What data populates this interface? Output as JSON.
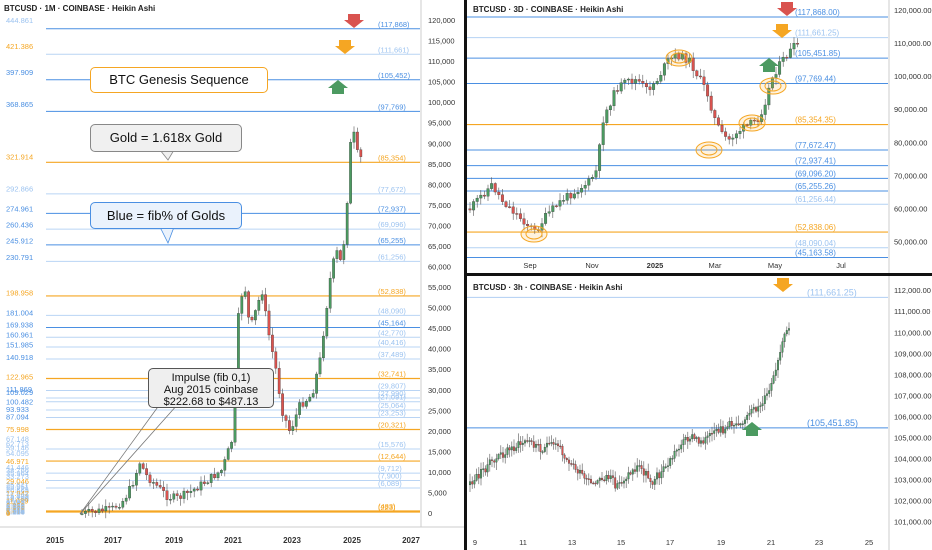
{
  "colors": {
    "orange": "#f5a623",
    "blue": "#4a8fe2",
    "lightblue": "#9cc3f0",
    "green": "#4c9a61",
    "red": "#d9534f",
    "impulse": "#efefef"
  },
  "callouts": {
    "genesis": "BTC Genesis Sequence",
    "gold": "Gold = 1.618x Gold",
    "blue": "Blue = fib% of Golds",
    "impulse_1": "Impulse (fib 0,1)",
    "impulse_2": "Aug 2015 coinbase",
    "impulse_3": "$222.68 to $487.13"
  },
  "chart_data": [
    {
      "type": "candlestick",
      "title": "BTCUSD · 1M · COINBASE · Heikin Ashi",
      "x_ticks": [
        "2015",
        "2017",
        "2019",
        "2021",
        "2023",
        "2025",
        "2027"
      ],
      "y_ticks": [
        0,
        5000,
        10000,
        15000,
        20000,
        25000,
        30000,
        35000,
        40000,
        45000,
        50000,
        55000,
        60000,
        65000,
        70000,
        75000,
        80000,
        85000,
        90000,
        95000,
        100000,
        105000,
        110000,
        115000,
        120000
      ],
      "ylim": [
        0,
        120000
      ],
      "left_labels": [
        {
          "v": 444.861,
          "t": "444.861",
          "c": "lightblue"
        },
        {
          "v": 421.386,
          "t": "421.386",
          "c": "orange"
        },
        {
          "v": 397.909,
          "t": "397.909",
          "c": "blue"
        },
        {
          "v": 368.865,
          "t": "368.865",
          "c": "blue"
        },
        {
          "v": 321.914,
          "t": "321.914",
          "c": "orange"
        },
        {
          "v": 292.866,
          "t": "292.866",
          "c": "lightblue"
        },
        {
          "v": 274.961,
          "t": "274.961",
          "c": "blue"
        },
        {
          "v": 260.436,
          "t": "260.436",
          "c": "blue"
        },
        {
          "v": 245.912,
          "t": "245.912",
          "c": "blue"
        },
        {
          "v": 230.791,
          "t": "230.791",
          "c": "blue"
        },
        {
          "v": 198.958,
          "t": "198.958",
          "c": "orange"
        },
        {
          "v": 181.004,
          "t": "181.004",
          "c": "blue"
        },
        {
          "v": 169.938,
          "t": "169.938",
          "c": "blue"
        },
        {
          "v": 160.961,
          "t": "160.961",
          "c": "blue"
        },
        {
          "v": 151.985,
          "t": "151.985",
          "c": "blue"
        },
        {
          "v": 140.918,
          "t": "140.918",
          "c": "blue"
        },
        {
          "v": 122.965,
          "t": "122.965",
          "c": "orange"
        },
        {
          "v": 111.869,
          "t": "111.869",
          "c": "blue"
        },
        {
          "v": 109.029,
          "t": "109.029",
          "c": "blue"
        },
        {
          "v": 100.482,
          "t": "100.482",
          "c": "blue"
        },
        {
          "v": 93.933,
          "t": "93.933",
          "c": "blue"
        },
        {
          "v": 87.094,
          "t": "87.094",
          "c": "blue"
        },
        {
          "v": 75.998,
          "t": "75.998",
          "c": "orange"
        },
        {
          "v": 67.148,
          "t": "67.148",
          "c": "lightblue"
        },
        {
          "v": 62.713,
          "t": "62.713",
          "c": "lightblue"
        },
        {
          "v": 59.146,
          "t": "59.146",
          "c": "lightblue"
        },
        {
          "v": 54.095,
          "t": "54.095",
          "c": "lightblue"
        },
        {
          "v": 46.971,
          "t": "46.971",
          "c": "orange"
        },
        {
          "v": 41.446,
          "t": "41.446",
          "c": "lightblue"
        },
        {
          "v": 38.766,
          "t": "38.766",
          "c": "lightblue"
        },
        {
          "v": 35.964,
          "t": "35.964",
          "c": "lightblue"
        },
        {
          "v": 33.273,
          "t": "33.273",
          "c": "lightblue"
        },
        {
          "v": 29.046,
          "t": "29.046",
          "c": "orange"
        },
        {
          "v": 25.611,
          "t": "25.611",
          "c": "lightblue"
        },
        {
          "v": 23.951,
          "t": "23.951",
          "c": "lightblue"
        },
        {
          "v": 22.221,
          "t": "22.221",
          "c": "lightblue"
        },
        {
          "v": 20.565,
          "t": "20.565",
          "c": "lightblue"
        },
        {
          "v": 17.942,
          "t": "17.942",
          "c": "orange"
        },
        {
          "v": 15.829,
          "t": "15.829",
          "c": "lightblue"
        },
        {
          "v": 14.793,
          "t": "14.793",
          "c": "lightblue"
        },
        {
          "v": 13.729,
          "t": "13.729",
          "c": "lightblue"
        },
        {
          "v": 12.705,
          "t": "12.705",
          "c": "lightblue"
        },
        {
          "v": 11.089,
          "t": "11.089",
          "c": "orange"
        },
        {
          "v": 9.783,
          "t": "9.783",
          "c": "lightblue"
        },
        {
          "v": 9.142,
          "t": "9.142",
          "c": "lightblue"
        },
        {
          "v": 8.487,
          "t": "8.487",
          "c": "lightblue"
        },
        {
          "v": 7.853,
          "t": "7.853",
          "c": "lightblue"
        },
        {
          "v": 6.853,
          "t": "6.853",
          "c": "orange"
        },
        {
          "v": 6.047,
          "t": "6.047",
          "c": "lightblue"
        },
        {
          "v": 5.651,
          "t": "5.651",
          "c": "lightblue"
        },
        {
          "v": 5.245,
          "t": "5.245",
          "c": "lightblue"
        },
        {
          "v": 4.853,
          "t": "4.853",
          "c": "lightblue"
        },
        {
          "v": 4.236,
          "t": "4.236",
          "c": "orange"
        },
        {
          "v": 3.736,
          "t": "3.736",
          "c": "lightblue"
        },
        {
          "v": 3.493,
          "t": "3.493",
          "c": "lightblue"
        },
        {
          "v": 3.242,
          "t": "3.242",
          "c": "lightblue"
        },
        {
          "v": 2.999,
          "t": "2.999",
          "c": "lightblue"
        },
        {
          "v": 2.618,
          "t": "2.618",
          "c": "orange"
        },
        {
          "v": 2.308,
          "t": "2.308",
          "c": "lightblue"
        },
        {
          "v": 2.159,
          "t": "2.159",
          "c": "lightblue"
        },
        {
          "v": 2.004,
          "t": "2.004",
          "c": "lightblue"
        },
        {
          "v": 1.854,
          "t": "1.854",
          "c": "lightblue"
        },
        {
          "v": 1.618,
          "t": "1.618",
          "c": "orange"
        },
        {
          "v": 1.427,
          "t": "1.427",
          "c": "lightblue"
        },
        {
          "v": 1.334,
          "t": "1.334",
          "c": "lightblue"
        },
        {
          "v": 1.238,
          "t": "1.238",
          "c": "lightblue"
        },
        {
          "v": 1.146,
          "t": "1.146",
          "c": "lightblue"
        },
        {
          "v": 1,
          "t": "1",
          "c": "orange"
        },
        {
          "v": 0,
          "t": "0",
          "c": "orange"
        }
      ],
      "levels": [
        {
          "p": 117868,
          "t": "(117,868)",
          "c": "blue"
        },
        {
          "p": 111661,
          "t": "(111,661)",
          "c": "lightblue"
        },
        {
          "p": 105452,
          "t": "(105,452)",
          "c": "blue"
        },
        {
          "p": 97769,
          "t": "(97,769)",
          "c": "blue"
        },
        {
          "p": 85354,
          "t": "(85,354)",
          "c": "orange"
        },
        {
          "p": 77672,
          "t": "(77,672)",
          "c": "lightblue"
        },
        {
          "p": 72937,
          "t": "(72,937)",
          "c": "blue"
        },
        {
          "p": 69096,
          "t": "(69,096)",
          "c": "lightblue"
        },
        {
          "p": 65255,
          "t": "(65,255)",
          "c": "blue"
        },
        {
          "p": 61256,
          "t": "(61,256)",
          "c": "lightblue"
        },
        {
          "p": 52838,
          "t": "(52,838)",
          "c": "orange"
        },
        {
          "p": 48090,
          "t": "(48,090)",
          "c": "lightblue"
        },
        {
          "p": 45164,
          "t": "(45,164)",
          "c": "blue"
        },
        {
          "p": 42770,
          "t": "(42,770)",
          "c": "lightblue"
        },
        {
          "p": 40416,
          "t": "(40,416)",
          "c": "lightblue"
        },
        {
          "p": 37489,
          "t": "(37,489)",
          "c": "lightblue"
        },
        {
          "p": 32741,
          "t": "(32,741)",
          "c": "orange"
        },
        {
          "p": 29807,
          "t": "(29,807)",
          "c": "lightblue"
        },
        {
          "p": 27990,
          "t": "(27,990)",
          "c": "lightblue"
        },
        {
          "p": 27091,
          "t": "(27,091)",
          "c": "lightblue"
        },
        {
          "p": 25064,
          "t": "(25,064)",
          "c": "lightblue"
        },
        {
          "p": 23253,
          "t": "(23,253)",
          "c": "lightblue"
        },
        {
          "p": 20321,
          "t": "(20,321)",
          "c": "orange"
        },
        {
          "p": 15576,
          "t": "(15,576)",
          "c": "lightblue"
        },
        {
          "p": 12644,
          "t": "(12,644)",
          "c": "orange"
        },
        {
          "p": 9712,
          "t": "(9,712)",
          "c": "lightblue"
        },
        {
          "p": 7900,
          "t": "(7,900)",
          "c": "lightblue"
        },
        {
          "p": 6089,
          "t": "(6,089)",
          "c": "lightblue"
        },
        {
          "p": 483,
          "t": "(483)",
          "c": "orange"
        },
        {
          "p": 223,
          "t": "(223)",
          "c": "orange"
        }
      ]
    },
    {
      "type": "candlestick",
      "title": "BTCUSD · 3D · COINBASE · Heikin Ashi",
      "x_ticks": [
        "Sep",
        "Nov",
        "2025",
        "Mar",
        "May",
        "Jul"
      ],
      "y_ticks": [
        "50,000.00",
        "60,000.00",
        "70,000.00",
        "80,000.00",
        "90,000.00",
        "100,000.00",
        "110,000.00",
        "120,000.00"
      ],
      "ylim": [
        45000,
        120000
      ],
      "levels": [
        {
          "p": 117868,
          "t": "(117,868.00)",
          "c": "blue"
        },
        {
          "p": 111661.25,
          "t": "(111,661.25)",
          "c": "lightblue"
        },
        {
          "p": 105451.85,
          "t": "(105,451.85)",
          "c": "blue"
        },
        {
          "p": 97769.44,
          "t": "(97,769.44)",
          "c": "blue"
        },
        {
          "p": 85354.35,
          "t": "(85,354.35)",
          "c": "orange"
        },
        {
          "p": 77672.47,
          "t": "(77,672.47)",
          "c": "blue"
        },
        {
          "p": 72937.41,
          "t": "(72,937.41)",
          "c": "blue"
        },
        {
          "p": 69096.2,
          "t": "(69,096.20)",
          "c": "blue"
        },
        {
          "p": 65255.26,
          "t": "(65,255.26)",
          "c": "blue"
        },
        {
          "p": 61256.44,
          "t": "(61,256.44)",
          "c": "lightblue"
        },
        {
          "p": 52838.06,
          "t": "(52,838.06)",
          "c": "orange"
        },
        {
          "p": 48090.04,
          "t": "(48,090.04)",
          "c": "lightblue"
        },
        {
          "p": 45163.58,
          "t": "(45,163.58)",
          "c": "blue"
        }
      ]
    },
    {
      "type": "candlestick",
      "title": "BTCUSD · 3h · COINBASE · Heikin Ashi",
      "x_ticks": [
        "9",
        "11",
        "13",
        "15",
        "17",
        "19",
        "21",
        "23",
        "25"
      ],
      "y_ticks": [
        "101,000.00",
        "102,000.00",
        "103,000.00",
        "104,000.00",
        "105,000.00",
        "106,000.00",
        "107,000.00",
        "108,000.00",
        "109,000.00",
        "110,000.00",
        "111,000.00",
        "112,000.00"
      ],
      "ylim": [
        100500,
        112200
      ],
      "levels": [
        {
          "p": 111661.25,
          "t": "(111,661.25)",
          "c": "lightblue"
        },
        {
          "p": 105451.85,
          "t": "(105,451.85)",
          "c": "blue"
        }
      ]
    }
  ]
}
